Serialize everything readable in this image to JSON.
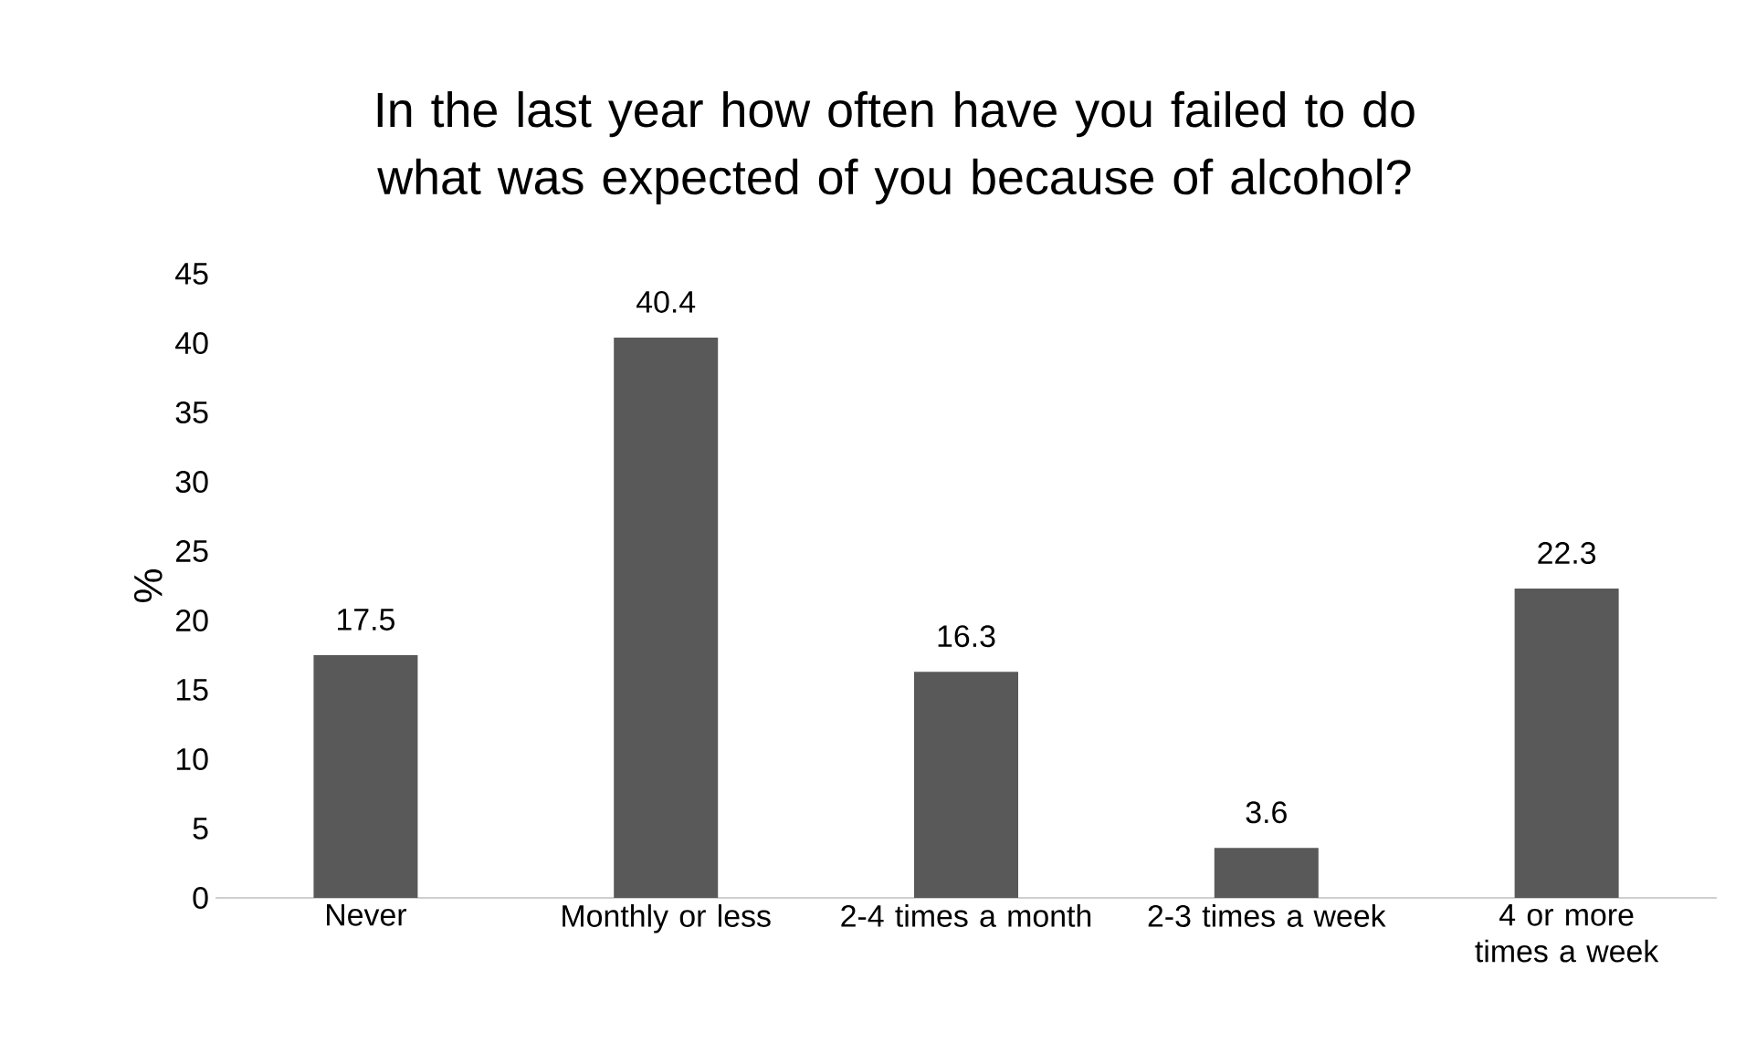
{
  "chart_data": {
    "type": "bar",
    "title": "In the last year how often have you failed to do what was expected of you because of alcohol?",
    "ylabel": "%",
    "categories": [
      "Never",
      "Monthly or less",
      "2-4 times a month",
      "2-3 times a week",
      "4 or more times a week"
    ],
    "values": [
      17.5,
      40.4,
      16.3,
      3.6,
      22.3
    ],
    "color": "#595959",
    "ylim": [
      0,
      45
    ],
    "yticks": [
      0,
      5,
      10,
      15,
      20,
      25,
      30,
      35,
      40,
      45
    ],
    "grid": false,
    "data_labels": true
  }
}
